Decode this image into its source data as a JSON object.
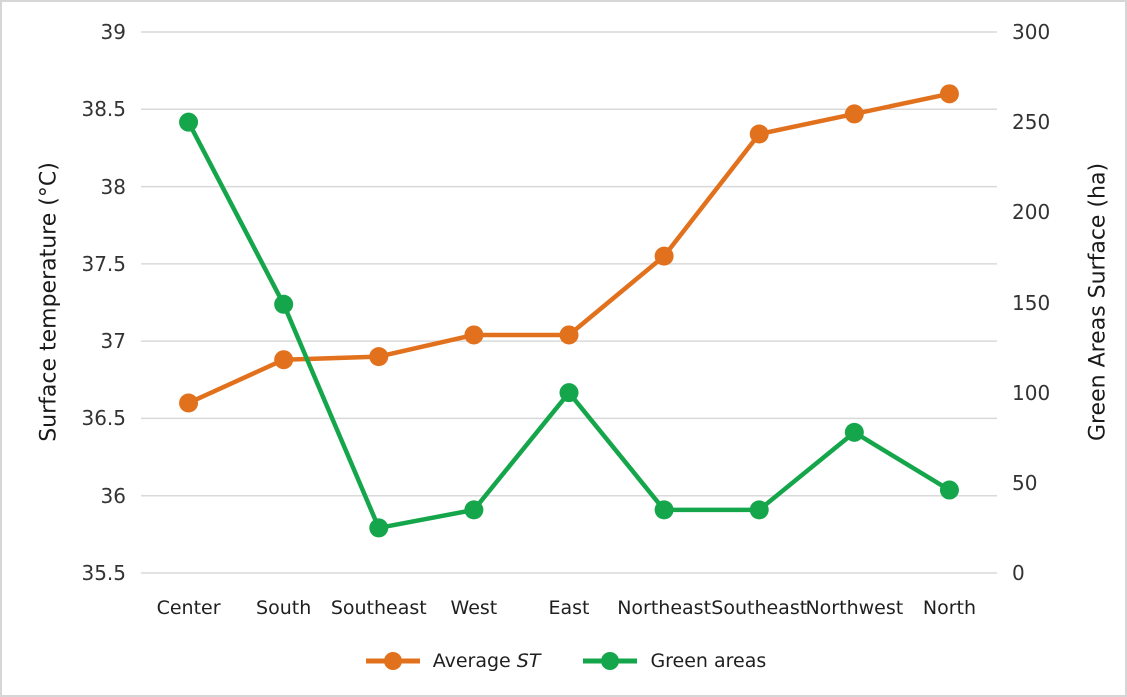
{
  "frame": {
    "border_color": "#d6d6d6",
    "background_color": "#ffffff"
  },
  "chart_data": {
    "type": "line",
    "categories": [
      "Center",
      "South",
      "Southeast",
      "West",
      "East",
      "Northeast",
      "Southeast",
      "Northwest",
      "North"
    ],
    "series": [
      {
        "name": "Average ST",
        "name_prefix": "Average ",
        "name_italic": "ST",
        "axis": "left",
        "color": "#e2711d",
        "values": [
          36.6,
          36.88,
          36.9,
          37.04,
          37.04,
          37.55,
          38.34,
          38.47,
          38.6
        ]
      },
      {
        "name": "Green areas",
        "name_prefix": "Green areas",
        "name_italic": "",
        "axis": "right",
        "color": "#15a64c",
        "values": [
          250,
          149,
          25,
          35,
          100,
          35,
          35,
          78,
          46
        ]
      }
    ],
    "left_axis": {
      "label": "Surface temperature (°C)",
      "min": 35.5,
      "max": 39,
      "step": 0.5,
      "ticks": [
        "39",
        "38.5",
        "38",
        "37.5",
        "37",
        "36.5",
        "36",
        "35.5"
      ]
    },
    "right_axis": {
      "label": "Green Areas Surface (ha)",
      "min": 0,
      "max": 300,
      "step": 50,
      "ticks": [
        "300",
        "250",
        "200",
        "150",
        "100",
        "50",
        "0"
      ]
    },
    "grid": true,
    "gridline_color": "#d9d9d9",
    "tick_text_color": "#333333",
    "label_text_color": "#1f1f1f",
    "legend_position": "bottom"
  }
}
